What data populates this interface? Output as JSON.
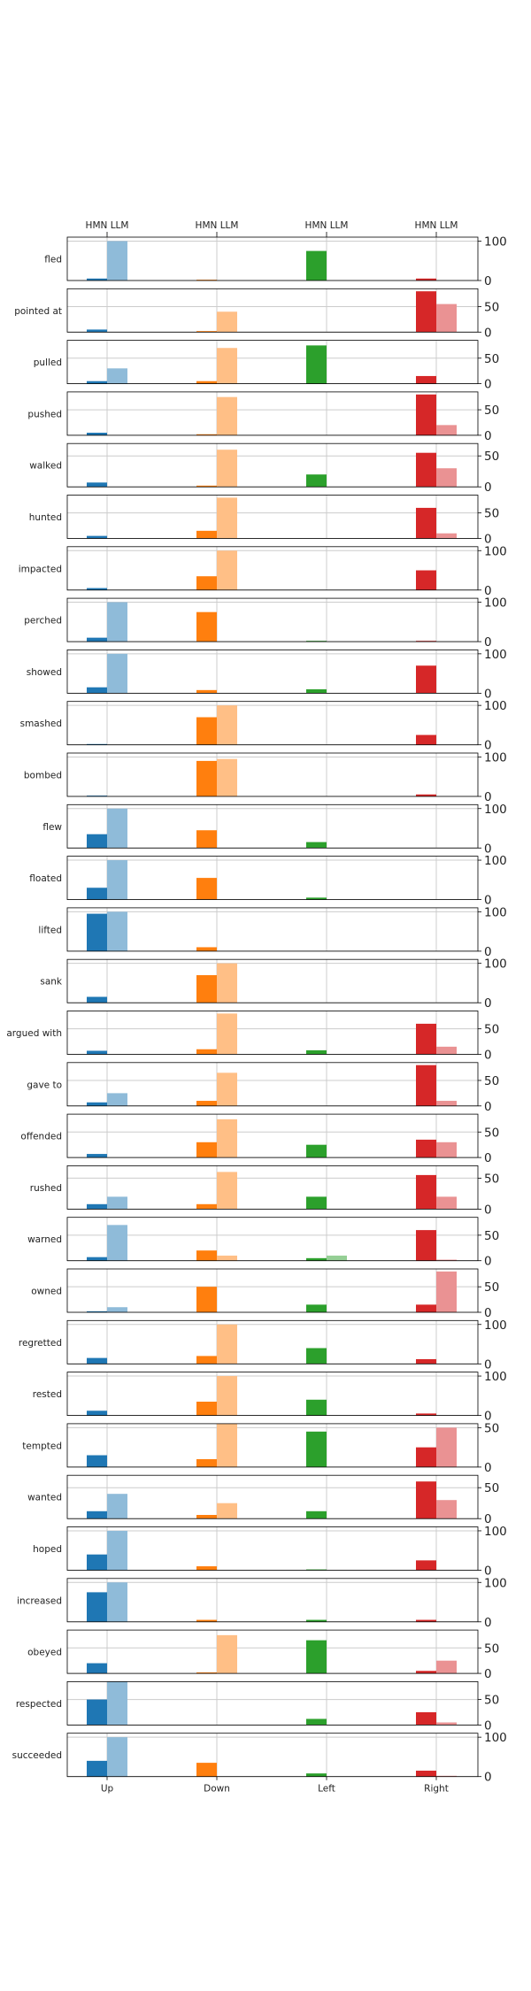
{
  "chart_data": {
    "type": "bar",
    "top_tick_labels": [
      "HMN LLM",
      "HMN LLM",
      "HMN LLM",
      "HMN LLM"
    ],
    "categories": [
      "Up",
      "Down",
      "Left",
      "Right"
    ],
    "series": [
      {
        "name": "HMN"
      },
      {
        "name": "LLM"
      }
    ],
    "colors": {
      "Up": {
        "HMN": "#1f77b4",
        "LLM": "#8fbbd9"
      },
      "Down": {
        "HMN": "#ff7f0e",
        "LLM": "#ffbf86"
      },
      "Left": {
        "HMN": "#2ca02c",
        "LLM": "#95cf95"
      },
      "Right": {
        "HMN": "#d62728",
        "LLM": "#ea9293"
      }
    },
    "grid": true,
    "rows": [
      {
        "verb": "fled",
        "ticks": [
          0,
          100
        ],
        "ylim": [
          0,
          110
        ],
        "hmn": [
          5,
          2,
          75,
          5
        ],
        "llm": [
          100,
          0,
          0,
          0
        ]
      },
      {
        "verb": "pointed at",
        "ticks": [
          0,
          50
        ],
        "ylim": [
          0,
          85
        ],
        "hmn": [
          5,
          2,
          0,
          80
        ],
        "llm": [
          0,
          40,
          0,
          55
        ]
      },
      {
        "verb": "pulled",
        "ticks": [
          0,
          50
        ],
        "ylim": [
          0,
          85
        ],
        "hmn": [
          5,
          5,
          75,
          15
        ],
        "llm": [
          30,
          70,
          0,
          0
        ]
      },
      {
        "verb": "pushed",
        "ticks": [
          0,
          50
        ],
        "ylim": [
          0,
          85
        ],
        "hmn": [
          5,
          2,
          0,
          80
        ],
        "llm": [
          0,
          75,
          0,
          20
        ]
      },
      {
        "verb": "walked",
        "ticks": [
          0,
          50
        ],
        "ylim": [
          0,
          70
        ],
        "hmn": [
          7,
          2,
          20,
          55
        ],
        "llm": [
          0,
          60,
          0,
          30
        ]
      },
      {
        "verb": "hunted",
        "ticks": [
          0,
          50
        ],
        "ylim": [
          0,
          85
        ],
        "hmn": [
          5,
          15,
          0,
          60
        ],
        "llm": [
          0,
          80,
          0,
          10
        ]
      },
      {
        "verb": "impacted",
        "ticks": [
          0,
          100
        ],
        "ylim": [
          0,
          110
        ],
        "hmn": [
          5,
          35,
          0,
          50
        ],
        "llm": [
          0,
          100,
          0,
          0
        ]
      },
      {
        "verb": "perched",
        "ticks": [
          0,
          100
        ],
        "ylim": [
          0,
          110
        ],
        "hmn": [
          10,
          75,
          2,
          2
        ],
        "llm": [
          100,
          0,
          0,
          0
        ]
      },
      {
        "verb": "showed",
        "ticks": [
          0,
          100
        ],
        "ylim": [
          0,
          110
        ],
        "hmn": [
          15,
          8,
          10,
          70
        ],
        "llm": [
          100,
          0,
          0,
          0
        ]
      },
      {
        "verb": "smashed",
        "ticks": [
          0,
          100
        ],
        "ylim": [
          0,
          110
        ],
        "hmn": [
          2,
          70,
          0,
          25
        ],
        "llm": [
          0,
          100,
          0,
          0
        ]
      },
      {
        "verb": "bombed",
        "ticks": [
          0,
          100
        ],
        "ylim": [
          0,
          110
        ],
        "hmn": [
          2,
          90,
          0,
          5
        ],
        "llm": [
          0,
          95,
          0,
          0
        ]
      },
      {
        "verb": "flew",
        "ticks": [
          0,
          100
        ],
        "ylim": [
          0,
          110
        ],
        "hmn": [
          35,
          45,
          15,
          0
        ],
        "llm": [
          100,
          0,
          0,
          0
        ]
      },
      {
        "verb": "floated",
        "ticks": [
          0,
          100
        ],
        "ylim": [
          0,
          110
        ],
        "hmn": [
          30,
          55,
          5,
          0
        ],
        "llm": [
          100,
          0,
          0,
          0
        ]
      },
      {
        "verb": "lifted",
        "ticks": [
          0,
          100
        ],
        "ylim": [
          0,
          110
        ],
        "hmn": [
          95,
          10,
          0,
          0
        ],
        "llm": [
          100,
          0,
          0,
          0
        ]
      },
      {
        "verb": "sank",
        "ticks": [
          0,
          100
        ],
        "ylim": [
          0,
          110
        ],
        "hmn": [
          15,
          70,
          0,
          0
        ],
        "llm": [
          0,
          100,
          0,
          0
        ]
      },
      {
        "verb": "argued with",
        "ticks": [
          0,
          50
        ],
        "ylim": [
          0,
          85
        ],
        "hmn": [
          7,
          10,
          8,
          60
        ],
        "llm": [
          0,
          80,
          0,
          15
        ]
      },
      {
        "verb": "gave to",
        "ticks": [
          0,
          50
        ],
        "ylim": [
          0,
          85
        ],
        "hmn": [
          7,
          10,
          0,
          80
        ],
        "llm": [
          25,
          65,
          0,
          10
        ]
      },
      {
        "verb": "offended",
        "ticks": [
          0,
          50
        ],
        "ylim": [
          0,
          85
        ],
        "hmn": [
          7,
          30,
          25,
          35
        ],
        "llm": [
          0,
          75,
          0,
          30
        ]
      },
      {
        "verb": "rushed",
        "ticks": [
          0,
          50
        ],
        "ylim": [
          0,
          70
        ],
        "hmn": [
          8,
          8,
          20,
          55
        ],
        "llm": [
          20,
          60,
          0,
          20
        ]
      },
      {
        "verb": "warned",
        "ticks": [
          0,
          50
        ],
        "ylim": [
          0,
          85
        ],
        "hmn": [
          7,
          20,
          5,
          60
        ],
        "llm": [
          70,
          10,
          10,
          2
        ]
      },
      {
        "verb": "owned",
        "ticks": [
          0,
          50
        ],
        "ylim": [
          0,
          85
        ],
        "hmn": [
          2,
          50,
          15,
          15
        ],
        "llm": [
          10,
          0,
          0,
          80
        ]
      },
      {
        "verb": "regretted",
        "ticks": [
          0,
          100
        ],
        "ylim": [
          0,
          110
        ],
        "hmn": [
          15,
          20,
          40,
          12
        ],
        "llm": [
          0,
          100,
          0,
          0
        ]
      },
      {
        "verb": "rested",
        "ticks": [
          0,
          100
        ],
        "ylim": [
          0,
          110
        ],
        "hmn": [
          12,
          35,
          40,
          5
        ],
        "llm": [
          0,
          100,
          0,
          0
        ]
      },
      {
        "verb": "tempted",
        "ticks": [
          0,
          50
        ],
        "ylim": [
          0,
          55
        ],
        "hmn": [
          15,
          10,
          45,
          25
        ],
        "llm": [
          0,
          55,
          0,
          50
        ]
      },
      {
        "verb": "wanted",
        "ticks": [
          0,
          50
        ],
        "ylim": [
          0,
          70
        ],
        "hmn": [
          12,
          6,
          12,
          60
        ],
        "llm": [
          40,
          25,
          0,
          30
        ]
      },
      {
        "verb": "hoped",
        "ticks": [
          0,
          100
        ],
        "ylim": [
          0,
          110
        ],
        "hmn": [
          40,
          10,
          2,
          25
        ],
        "llm": [
          100,
          0,
          0,
          0
        ]
      },
      {
        "verb": "increased",
        "ticks": [
          0,
          100
        ],
        "ylim": [
          0,
          110
        ],
        "hmn": [
          75,
          5,
          5,
          5
        ],
        "llm": [
          100,
          0,
          0,
          0
        ]
      },
      {
        "verb": "obeyed",
        "ticks": [
          0,
          50
        ],
        "ylim": [
          0,
          85
        ],
        "hmn": [
          20,
          2,
          65,
          5
        ],
        "llm": [
          0,
          75,
          0,
          25
        ]
      },
      {
        "verb": "respected",
        "ticks": [
          0,
          50
        ],
        "ylim": [
          0,
          85
        ],
        "hmn": [
          50,
          0,
          12,
          25
        ],
        "llm": [
          85,
          0,
          0,
          5
        ]
      },
      {
        "verb": "succeeded",
        "ticks": [
          0,
          100
        ],
        "ylim": [
          0,
          110
        ],
        "hmn": [
          40,
          35,
          8,
          15
        ],
        "llm": [
          100,
          0,
          0,
          2
        ]
      }
    ]
  }
}
